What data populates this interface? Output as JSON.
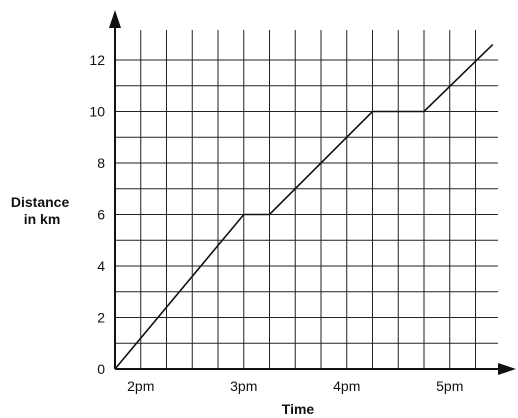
{
  "chart_data": {
    "type": "line",
    "title": "",
    "xlabel": "Time",
    "ylabel_lines": [
      "Distance",
      "in km"
    ],
    "x_tick_labels": [
      "2pm",
      "3pm",
      "4pm",
      "5pm"
    ],
    "x_tick_values_min": [
      15,
      75,
      135,
      195
    ],
    "y_tick_labels": [
      "0",
      "2",
      "4",
      "6",
      "8",
      "10",
      "12"
    ],
    "y_tick_values": [
      0,
      2,
      4,
      6,
      8,
      10,
      12
    ],
    "xlim_min": [
      -15,
      225
    ],
    "ylim": [
      0,
      12.6
    ],
    "x_unit": "minutes after 1:45pm",
    "grid": true,
    "series": [
      {
        "x_min": [
          0,
          75,
          90,
          150,
          180,
          220
        ],
        "y": [
          0,
          6,
          6,
          10,
          10,
          12.6
        ]
      }
    ]
  }
}
